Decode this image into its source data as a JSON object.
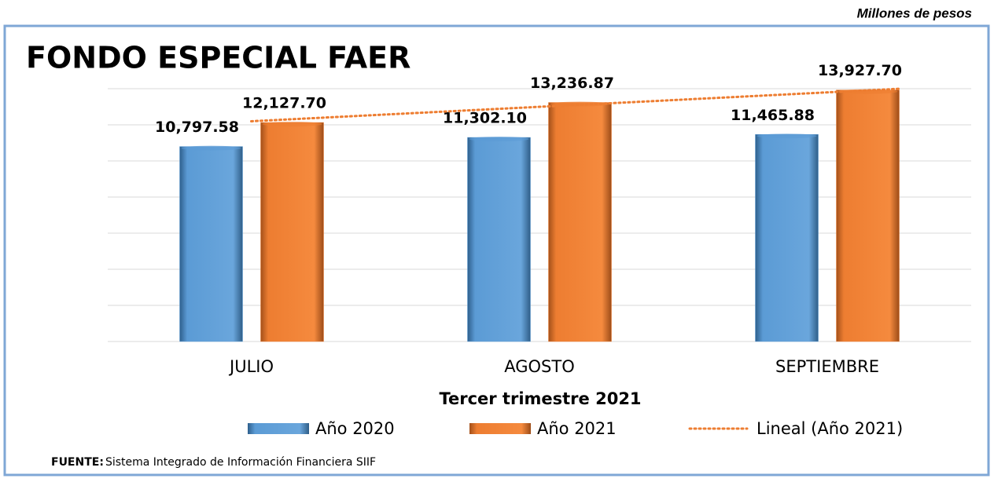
{
  "chart_data": {
    "type": "bar",
    "title": "FONDO ESPECIAL FAER",
    "unit_note": "Millones de pesos",
    "x_label": "Tercer trimestre 2021",
    "categories": [
      "JULIO",
      "AGOSTO",
      "SEPTIEMBRE"
    ],
    "series": [
      {
        "name": "Año 2020",
        "color": "#5b9bd5",
        "values": [
          10797.58,
          11302.1,
          11465.88
        ],
        "value_labels": [
          "10,797.58",
          "11,302.10",
          "11,465.88"
        ]
      },
      {
        "name": "Año 2021",
        "color": "#ed7d31",
        "values": [
          12127.7,
          13236.87,
          13927.7
        ],
        "value_labels": [
          "12,127.70",
          "13,236.87",
          "13,927.70"
        ]
      }
    ],
    "trendline": {
      "name": "Lineal (Año 2021)",
      "color": "#ed7d31"
    },
    "ylim": [
      0,
      14000
    ],
    "yticks": [
      0,
      2000,
      4000,
      6000,
      8000,
      10000,
      12000,
      14000
    ],
    "grid": true,
    "source": {
      "label": "FUENTE:",
      "text": "Sistema Integrado de Información Financiera SIIF"
    }
  }
}
